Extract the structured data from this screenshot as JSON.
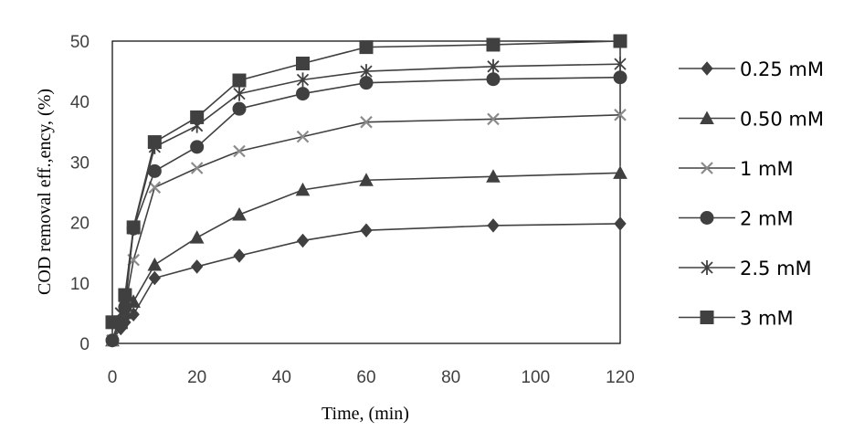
{
  "chart_data": {
    "type": "line",
    "xlabel": "Time,  (min)",
    "ylabel": "COD removal eff.,ency,  (%)",
    "xlim": [
      0,
      120
    ],
    "ylim": [
      0,
      50
    ],
    "xticks": [
      "0",
      "20",
      "40",
      "60",
      "80",
      "100",
      "120"
    ],
    "yticks": [
      "0",
      "10",
      "20",
      "30",
      "40",
      "50"
    ],
    "grid": false,
    "legend_position": "right",
    "line_color": "#404040",
    "x": [
      0,
      2,
      3,
      5,
      10,
      20,
      30,
      45,
      60,
      90,
      120
    ],
    "series": [
      {
        "name": "0.25 mM",
        "marker": "diamond",
        "values": [
          0.5,
          2.5,
          3.5,
          4.8,
          10.8,
          12.7,
          14.5,
          17.0,
          18.7,
          19.5,
          19.8
        ]
      },
      {
        "name": "0.50 mM",
        "marker": "triangle",
        "values": [
          0.5,
          3.5,
          5.0,
          6.9,
          13.0,
          17.5,
          21.3,
          25.4,
          27.0,
          27.6,
          28.2
        ]
      },
      {
        "name": "1 mM",
        "marker": "x",
        "values": [
          0.5,
          5.0,
          6.0,
          13.8,
          25.8,
          29.0,
          31.8,
          34.2,
          36.6,
          37.1,
          37.8
        ]
      },
      {
        "name": "2 mM",
        "marker": "circle",
        "values": [
          0.5,
          3.5,
          6.0,
          19.0,
          28.5,
          32.5,
          38.8,
          41.3,
          43.1,
          43.7,
          44.0
        ]
      },
      {
        "name": "2.5 mM",
        "marker": "asterisk",
        "values": [
          3.5,
          5.0,
          7.0,
          19.0,
          32.5,
          36.0,
          41.3,
          43.6,
          45.0,
          45.8,
          46.2
        ]
      },
      {
        "name": "3 mM",
        "marker": "square",
        "values": [
          3.5,
          3.5,
          8.0,
          19.2,
          33.3,
          37.4,
          43.5,
          46.3,
          49.0,
          49.4,
          50.0
        ]
      }
    ]
  }
}
